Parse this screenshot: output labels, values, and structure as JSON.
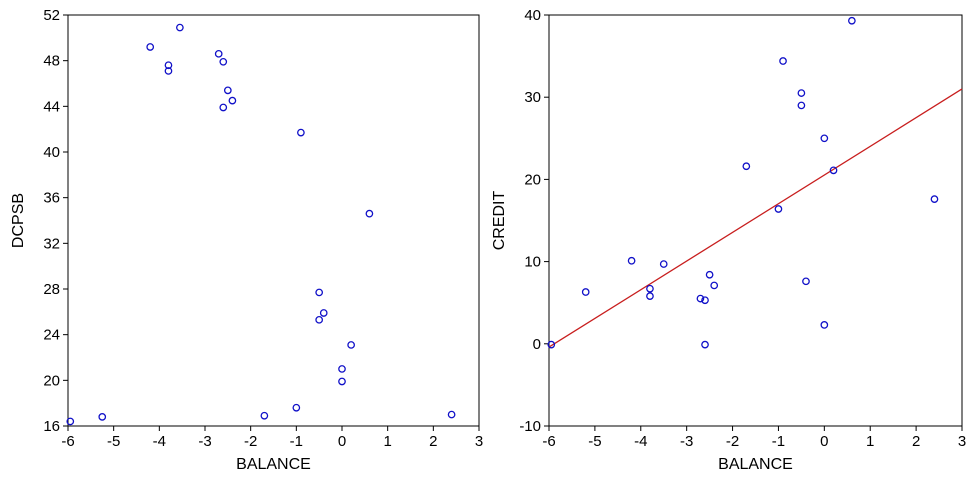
{
  "chart_data": [
    {
      "type": "scatter",
      "title": "",
      "xlabel": "BALANCE",
      "ylabel": "DCPSB",
      "xlim": [
        -6,
        3
      ],
      "ylim": [
        16,
        52
      ],
      "xticks": [
        -6,
        -5,
        -4,
        -3,
        -2,
        -1,
        0,
        1,
        2,
        3
      ],
      "yticks": [
        16,
        20,
        24,
        28,
        32,
        36,
        40,
        44,
        48,
        52
      ],
      "grid": false,
      "marker_color": "#1010c8",
      "points": [
        {
          "x": -5.95,
          "y": 16.4
        },
        {
          "x": -5.25,
          "y": 16.8
        },
        {
          "x": -4.2,
          "y": 49.2
        },
        {
          "x": -3.8,
          "y": 47.6
        },
        {
          "x": -3.8,
          "y": 47.1
        },
        {
          "x": -3.55,
          "y": 50.9
        },
        {
          "x": -2.7,
          "y": 48.6
        },
        {
          "x": -2.6,
          "y": 47.9
        },
        {
          "x": -2.5,
          "y": 45.4
        },
        {
          "x": -2.6,
          "y": 43.9
        },
        {
          "x": -2.4,
          "y": 44.5
        },
        {
          "x": -1.7,
          "y": 16.9
        },
        {
          "x": -1.0,
          "y": 17.6
        },
        {
          "x": -0.9,
          "y": 41.7
        },
        {
          "x": -0.5,
          "y": 27.7
        },
        {
          "x": -0.5,
          "y": 25.3
        },
        {
          "x": -0.4,
          "y": 25.9
        },
        {
          "x": 0.0,
          "y": 21.0
        },
        {
          "x": 0.0,
          "y": 19.9
        },
        {
          "x": 0.2,
          "y": 23.1
        },
        {
          "x": 0.6,
          "y": 34.6
        },
        {
          "x": 2.4,
          "y": 17.0
        }
      ]
    },
    {
      "type": "scatter",
      "title": "",
      "xlabel": "BALANCE",
      "ylabel": "CREDIT",
      "xlim": [
        -6,
        3
      ],
      "ylim": [
        -10,
        40
      ],
      "xticks": [
        -6,
        -5,
        -4,
        -3,
        -2,
        -1,
        0,
        1,
        2,
        3
      ],
      "yticks": [
        -10,
        0,
        10,
        20,
        30,
        40
      ],
      "grid": false,
      "marker_color": "#1010c8",
      "fit_line_color": "#c81e1e",
      "points": [
        {
          "x": -5.95,
          "y": -0.1
        },
        {
          "x": -5.2,
          "y": 6.3
        },
        {
          "x": -4.2,
          "y": 10.1
        },
        {
          "x": -3.8,
          "y": 6.7
        },
        {
          "x": -3.8,
          "y": 5.8
        },
        {
          "x": -3.5,
          "y": 9.7
        },
        {
          "x": -2.7,
          "y": 5.5
        },
        {
          "x": -2.6,
          "y": 5.3
        },
        {
          "x": -2.6,
          "y": -0.1
        },
        {
          "x": -2.5,
          "y": 8.4
        },
        {
          "x": -2.4,
          "y": 7.1
        },
        {
          "x": -1.7,
          "y": 21.6
        },
        {
          "x": -1.0,
          "y": 16.4
        },
        {
          "x": -0.9,
          "y": 34.4
        },
        {
          "x": -0.5,
          "y": 30.5
        },
        {
          "x": -0.5,
          "y": 29.0
        },
        {
          "x": -0.4,
          "y": 7.6
        },
        {
          "x": 0.0,
          "y": 25.0
        },
        {
          "x": 0.0,
          "y": 2.3
        },
        {
          "x": 0.2,
          "y": 21.1
        },
        {
          "x": 0.6,
          "y": 39.3
        },
        {
          "x": 2.4,
          "y": 17.6
        }
      ],
      "fit_line": {
        "x": [
          -6,
          3
        ],
        "y": [
          -0.4,
          31.0
        ]
      }
    }
  ]
}
